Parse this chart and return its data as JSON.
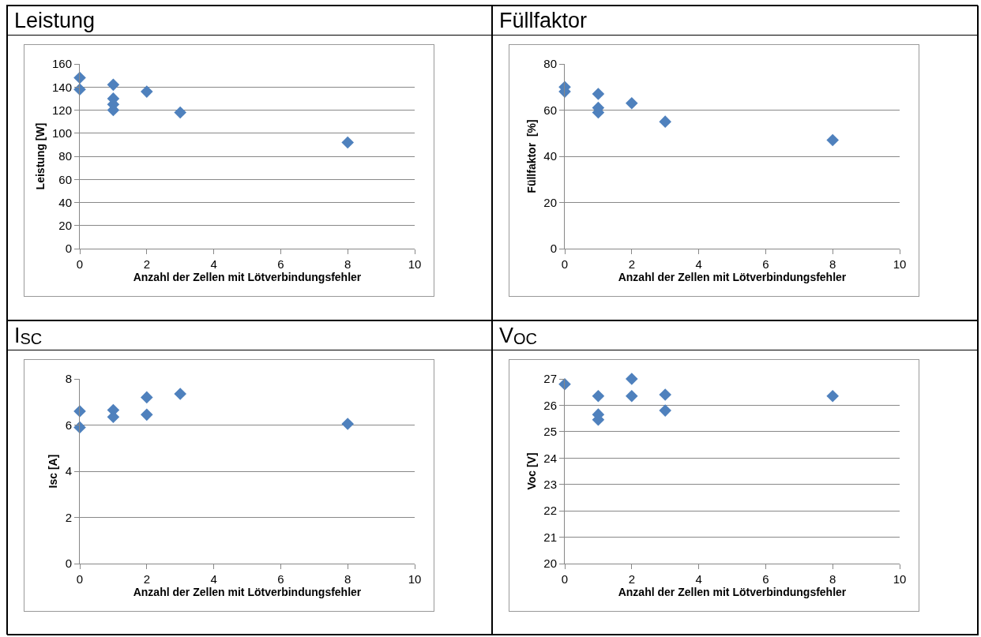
{
  "chart_data": [
    {
      "type": "scatter",
      "title": "Leistung",
      "xlabel": "Anzahl der Zellen mit Lötverbindungsfehler",
      "ylabel": "Leistung [W]",
      "x": [
        0,
        0,
        1,
        1,
        1,
        1,
        2,
        3,
        8
      ],
      "values": [
        148,
        138,
        142,
        130,
        125,
        120,
        136,
        118,
        92
      ],
      "color": "#4f81bd",
      "marker": "diamond",
      "xlim": [
        0,
        10
      ],
      "xticks": [
        0,
        2,
        4,
        6,
        8,
        10
      ],
      "ylim": [
        0,
        160
      ],
      "yticks": [
        0,
        20,
        40,
        60,
        80,
        100,
        120,
        140,
        160
      ],
      "grid": "y"
    },
    {
      "type": "scatter",
      "title": "Füllfaktor",
      "xlabel": "Anzahl der Zellen mit Lötverbindungsfehler",
      "ylabel": "Füllfaktor  [%]",
      "x": [
        0,
        0,
        1,
        1,
        1,
        2,
        3,
        8
      ],
      "values": [
        70,
        68,
        67,
        61,
        59,
        63,
        55,
        47
      ],
      "color": "#4f81bd",
      "marker": "diamond",
      "xlim": [
        0,
        10
      ],
      "xticks": [
        0,
        2,
        4,
        6,
        8,
        10
      ],
      "ylim": [
        0,
        80
      ],
      "yticks": [
        0,
        20,
        40,
        60,
        80
      ],
      "grid": "y"
    },
    {
      "type": "scatter",
      "title": "I$_{SC}$",
      "xlabel": "Anzahl der Zellen mit Lötverbindungsfehler",
      "ylabel": "Isc [A]",
      "x": [
        0,
        0,
        1,
        1,
        2,
        2,
        3,
        8
      ],
      "values": [
        6.6,
        5.9,
        6.65,
        6.35,
        7.2,
        6.45,
        7.35,
        6.05
      ],
      "color": "#4f81bd",
      "marker": "diamond",
      "xlim": [
        0,
        10
      ],
      "xticks": [
        0,
        2,
        4,
        6,
        8,
        10
      ],
      "ylim": [
        0,
        8
      ],
      "yticks": [
        0,
        2,
        4,
        6,
        8
      ],
      "grid": "y"
    },
    {
      "type": "scatter",
      "title": "V$_{OC}$",
      "xlabel": "Anzahl der Zellen mit Lötverbindungsfehler",
      "ylabel": "Voc [V]",
      "x": [
        0,
        1,
        1,
        1,
        2,
        2,
        3,
        3,
        8
      ],
      "values": [
        26.8,
        26.35,
        25.65,
        25.45,
        27.0,
        26.35,
        26.4,
        25.8,
        26.35
      ],
      "color": "#4f81bd",
      "marker": "diamond",
      "xlim": [
        0,
        10
      ],
      "xticks": [
        0,
        2,
        4,
        6,
        8,
        10
      ],
      "ylim": [
        20,
        27
      ],
      "yticks": [
        20,
        21,
        22,
        23,
        24,
        25,
        26,
        27
      ],
      "grid": "y"
    }
  ]
}
